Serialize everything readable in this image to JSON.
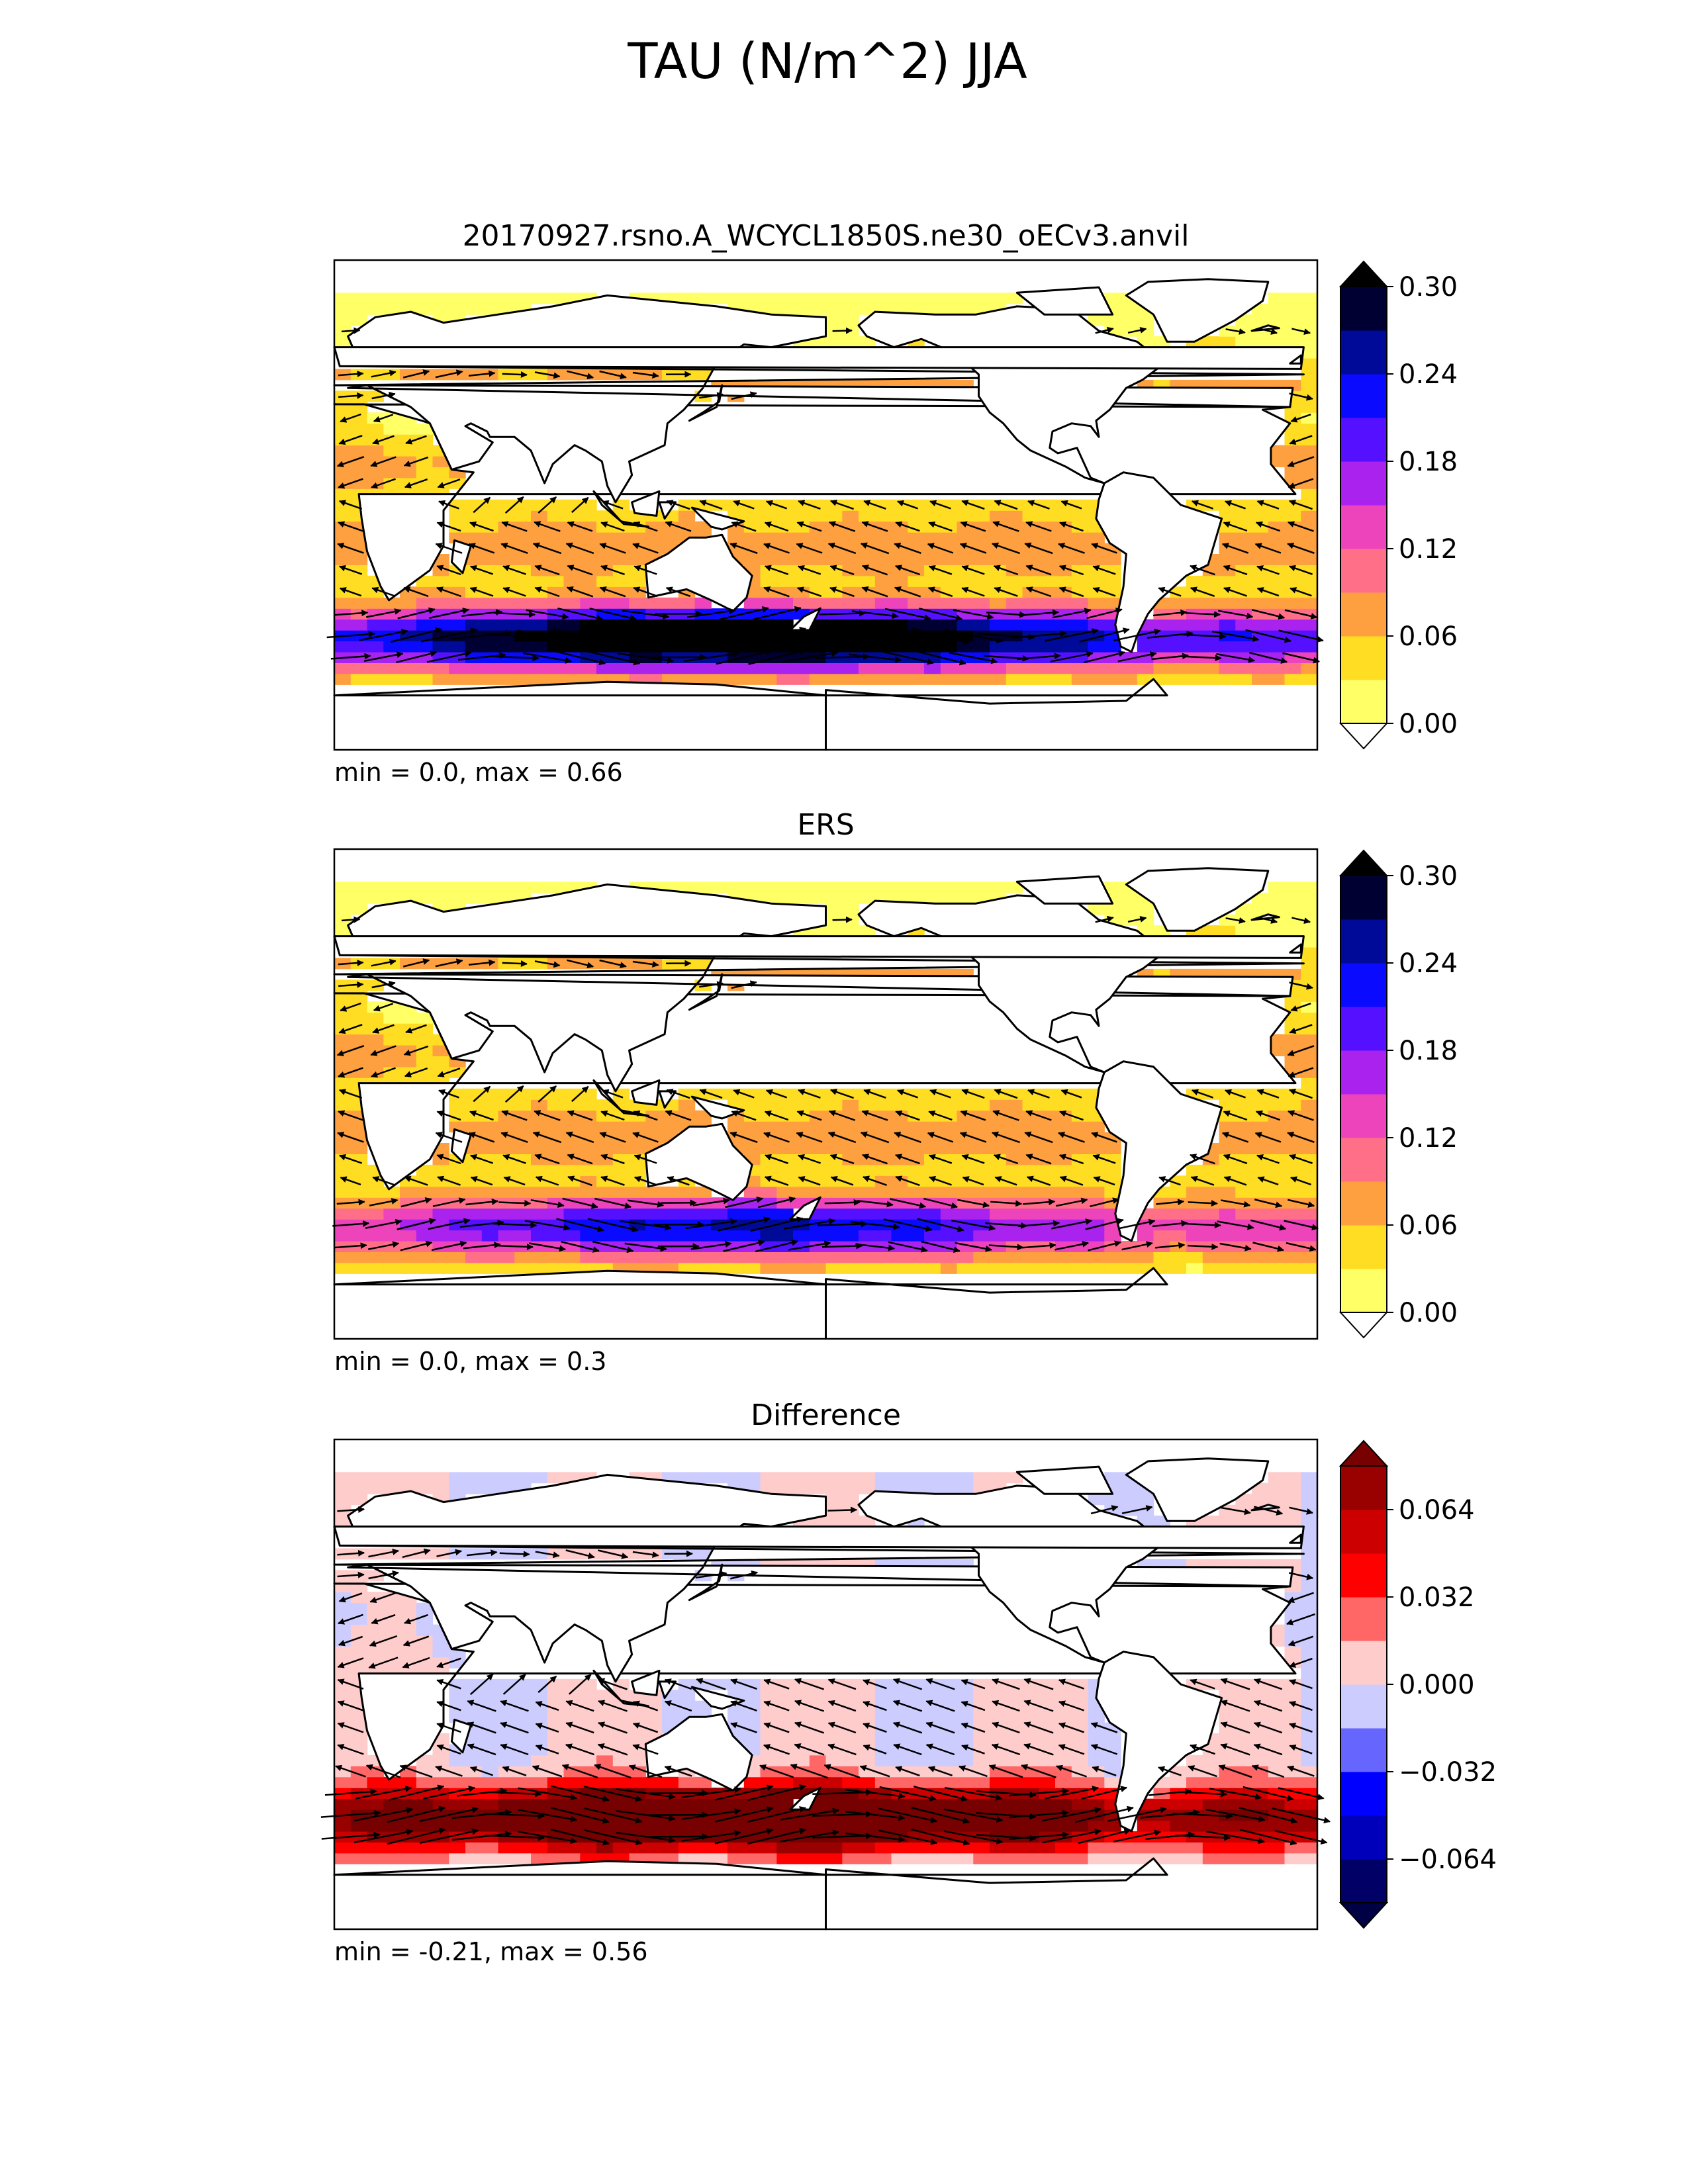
{
  "figure_title": "TAU (N/m^2) JJA",
  "colors": {
    "ocean_fallback": "#ffff66",
    "land": "#ffffff",
    "coast": "#000000",
    "arrow": "#000000"
  },
  "chart_data": [
    {
      "type": "heatmap",
      "title": "20170927.rsno.A_WCYCL1850S.ne30_oECv3.anvil",
      "stats": "min = 0.0, max = 0.66",
      "xlim": [
        0,
        360
      ],
      "ylim": [
        -90,
        90
      ],
      "field": "model",
      "colorbar": {
        "extend": "both",
        "levels": [
          0.0,
          0.03,
          0.06,
          0.09,
          0.12,
          0.15,
          0.18,
          0.21,
          0.24,
          0.27,
          0.3
        ],
        "colors": [
          "#ffff66",
          "#ffdd22",
          "#ffa040",
          "#ff7088",
          "#ee44bb",
          "#aa22ee",
          "#5511ff",
          "#0a0aff",
          "#000a99",
          "#000033"
        ],
        "under_color": "#ffffff",
        "over_color": "#000000",
        "ticks": [
          "0.00",
          "0.06",
          "0.12",
          "0.18",
          "0.24",
          "0.30"
        ]
      }
    },
    {
      "type": "heatmap",
      "title": "ERS",
      "stats": "min = 0.0, max = 0.3",
      "xlim": [
        0,
        360
      ],
      "ylim": [
        -90,
        90
      ],
      "field": "obs",
      "colorbar": {
        "extend": "both",
        "levels": [
          0.0,
          0.03,
          0.06,
          0.09,
          0.12,
          0.15,
          0.18,
          0.21,
          0.24,
          0.27,
          0.3
        ],
        "colors": [
          "#ffff66",
          "#ffdd22",
          "#ffa040",
          "#ff7088",
          "#ee44bb",
          "#aa22ee",
          "#5511ff",
          "#0a0aff",
          "#000a99",
          "#000033"
        ],
        "under_color": "#ffffff",
        "over_color": "#000000",
        "ticks": [
          "0.00",
          "0.06",
          "0.12",
          "0.18",
          "0.24",
          "0.30"
        ]
      }
    },
    {
      "type": "heatmap",
      "title": "Difference",
      "stats": "min = -0.21, max = 0.56",
      "xlim": [
        0,
        360
      ],
      "ylim": [
        -90,
        90
      ],
      "field": "diff",
      "colorbar": {
        "extend": "both",
        "levels": [
          -0.08,
          -0.064,
          -0.048,
          -0.032,
          -0.016,
          0.0,
          0.016,
          0.032,
          0.048,
          0.064,
          0.08
        ],
        "colors": [
          "#000066",
          "#0000bb",
          "#0000ff",
          "#6666ff",
          "#ccccff",
          "#ffcccc",
          "#ff6666",
          "#ff0000",
          "#cc0000",
          "#990000"
        ],
        "under_color": "#000044",
        "over_color": "#770000",
        "ticks": [
          "−0.064",
          "−0.032",
          "0.000",
          "0.032",
          "0.064"
        ]
      }
    }
  ]
}
